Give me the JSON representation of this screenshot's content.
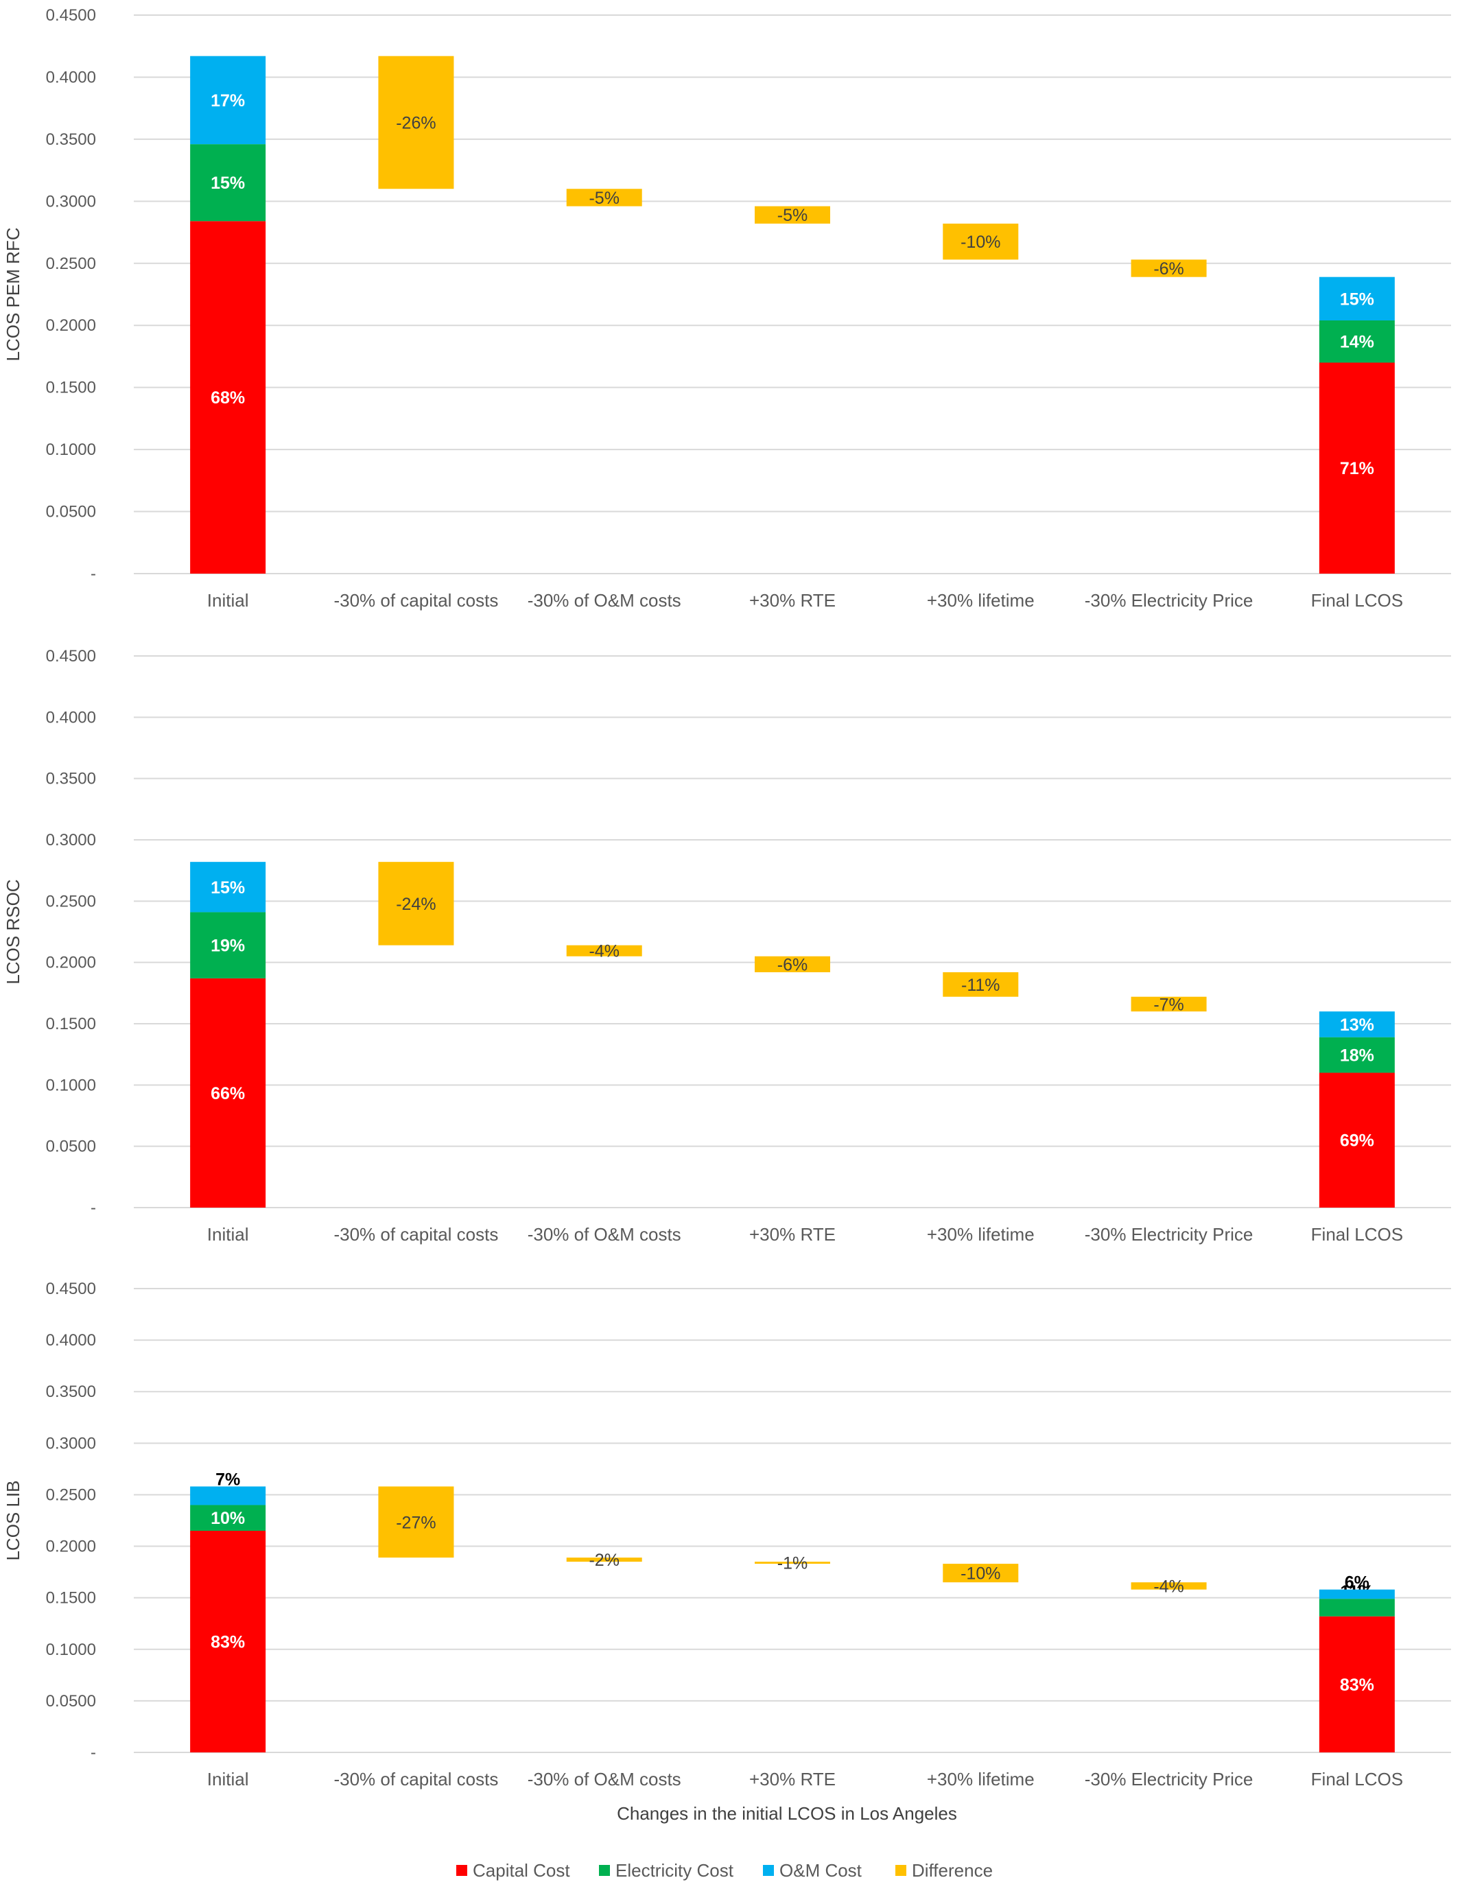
{
  "chart_data": {
    "type": "bar",
    "stacked": true,
    "waterfall": true,
    "xlabel": "Changes in the initial LCOS in Los Angeles",
    "categories": [
      "Initial",
      "-30% of capital costs",
      "-30% of O&M costs",
      "+30% RTE",
      "+30% lifetime",
      "-30% Electricity Price",
      "Final LCOS"
    ],
    "y_ticks": [
      "-",
      "0.0500",
      "0.1000",
      "0.1500",
      "0.2000",
      "0.2500",
      "0.3000",
      "0.3500",
      "0.4000",
      "0.4500"
    ],
    "ylim": [
      0,
      0.45
    ],
    "grid": true,
    "legend_position": "bottom",
    "legend": [
      {
        "name": "Capital Cost",
        "color": "#ff0000"
      },
      {
        "name": "Electricity Cost",
        "color": "#00b050"
      },
      {
        "name": "O&M Cost",
        "color": "#00b0f0"
      },
      {
        "name": "Difference",
        "color": "#ffc000"
      }
    ],
    "panels": [
      {
        "ylabel": "LCOS PEM RFC",
        "initial": {
          "segments": [
            {
              "series": "Capital Cost",
              "value": 0.284,
              "label": "68%"
            },
            {
              "series": "Electricity Cost",
              "value": 0.062,
              "label": "15%"
            },
            {
              "series": "O&M Cost",
              "value": 0.071,
              "label": "17%"
            }
          ]
        },
        "steps": [
          {
            "from": 0.417,
            "to": 0.31,
            "label": "-26%"
          },
          {
            "from": 0.31,
            "to": 0.296,
            "label": "-5%"
          },
          {
            "from": 0.296,
            "to": 0.282,
            "label": "-5%"
          },
          {
            "from": 0.282,
            "to": 0.253,
            "label": "-10%"
          },
          {
            "from": 0.253,
            "to": 0.239,
            "label": "-6%"
          }
        ],
        "final": {
          "segments": [
            {
              "series": "Capital Cost",
              "value": 0.17,
              "label": "71%"
            },
            {
              "series": "Electricity Cost",
              "value": 0.034,
              "label": "14%"
            },
            {
              "series": "O&M Cost",
              "value": 0.035,
              "label": "15%"
            }
          ]
        }
      },
      {
        "ylabel": "LCOS RSOC",
        "initial": {
          "segments": [
            {
              "series": "Capital Cost",
              "value": 0.187,
              "label": "66%"
            },
            {
              "series": "Electricity Cost",
              "value": 0.054,
              "label": "19%"
            },
            {
              "series": "O&M Cost",
              "value": 0.041,
              "label": "15%"
            }
          ]
        },
        "steps": [
          {
            "from": 0.282,
            "to": 0.214,
            "label": "-24%"
          },
          {
            "from": 0.214,
            "to": 0.205,
            "label": "-4%"
          },
          {
            "from": 0.205,
            "to": 0.192,
            "label": "-6%"
          },
          {
            "from": 0.192,
            "to": 0.172,
            "label": "-11%"
          },
          {
            "from": 0.172,
            "to": 0.16,
            "label": "-7%"
          }
        ],
        "final": {
          "segments": [
            {
              "series": "Capital Cost",
              "value": 0.11,
              "label": "69%"
            },
            {
              "series": "Electricity Cost",
              "value": 0.029,
              "label": "18%"
            },
            {
              "series": "O&M Cost",
              "value": 0.021,
              "label": "13%"
            }
          ]
        }
      },
      {
        "ylabel": "LCOS LIB",
        "initial": {
          "segments": [
            {
              "series": "Capital Cost",
              "value": 0.215,
              "label": "83%"
            },
            {
              "series": "Electricity Cost",
              "value": 0.025,
              "label": "10%"
            },
            {
              "series": "O&M Cost",
              "value": 0.018,
              "label": "7%"
            }
          ]
        },
        "steps": [
          {
            "from": 0.258,
            "to": 0.189,
            "label": "-27%"
          },
          {
            "from": 0.189,
            "to": 0.185,
            "label": "-2%"
          },
          {
            "from": 0.185,
            "to": 0.183,
            "label": "-1%"
          },
          {
            "from": 0.183,
            "to": 0.165,
            "label": "-10%"
          },
          {
            "from": 0.165,
            "to": 0.158,
            "label": "-4%"
          }
        ],
        "final": {
          "segments": [
            {
              "series": "Capital Cost",
              "value": 0.132,
              "label": "83%"
            },
            {
              "series": "Electricity Cost",
              "value": 0.017,
              "label": "11%"
            },
            {
              "series": "O&M Cost",
              "value": 0.009,
              "label": "6%"
            }
          ]
        }
      }
    ]
  }
}
